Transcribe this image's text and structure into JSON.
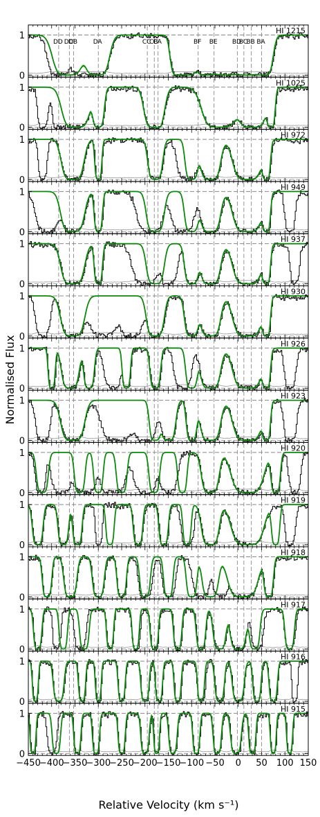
{
  "chart_data": {
    "type": "line",
    "ylabel": "Normalised Flux",
    "xlabel": "Relative Velocity (km s⁻¹)",
    "xlim": [
      -450,
      150
    ],
    "ylim": [
      -0.05,
      1.25
    ],
    "xticks": [
      -450,
      -400,
      -350,
      -300,
      -250,
      -200,
      -150,
      -100,
      -50,
      0,
      50,
      100,
      150
    ],
    "xtick_labels": [
      "−450",
      "−400",
      "−350",
      "−300",
      "−250",
      "−200",
      "−150",
      "−100",
      "−50",
      "0",
      "50",
      "100",
      "150"
    ],
    "yticks": [
      0,
      1
    ],
    "grid": false,
    "colors": {
      "data": "#000000",
      "model": "#0a8a0a",
      "model_band": "#7ccc7c",
      "error": "#999999",
      "guide": "#888888"
    },
    "components": [
      {
        "name": "DD",
        "v": -385
      },
      {
        "name": "DC",
        "v": -362
      },
      {
        "name": "DB",
        "v": -353
      },
      {
        "name": "DA",
        "v": -300
      },
      {
        "name": "CC",
        "v": -195
      },
      {
        "name": "CB",
        "v": -180
      },
      {
        "name": "CA",
        "v": -172
      },
      {
        "name": "BF",
        "v": -86
      },
      {
        "name": "BE",
        "v": -52
      },
      {
        "name": "BD",
        "v": -2
      },
      {
        "name": "BC",
        "v": 12
      },
      {
        "name": "BB",
        "v": 28
      },
      {
        "name": "BA",
        "v": 50
      }
    ],
    "panels": [
      {
        "label": "HI 1215",
        "show_components": true,
        "model_troughs": [
          [
            -365,
            52
          ],
          [
            -303,
            42
          ],
          [
            -130,
            25
          ],
          [
            -107,
            30
          ],
          [
            -70,
            35
          ],
          [
            -30,
            46
          ],
          [
            18,
            56
          ],
          [
            55,
            30
          ]
        ],
        "data_troughs": [
          [
            -385,
            40
          ],
          [
            -335,
            40
          ],
          [
            -303,
            42
          ],
          [
            -130,
            25
          ],
          [
            -107,
            30
          ],
          [
            -70,
            35
          ],
          [
            -30,
            46
          ],
          [
            18,
            56
          ],
          [
            55,
            30
          ]
        ]
      },
      {
        "label": "HI 1025",
        "show_components": false,
        "model_troughs": [
          [
            -348,
            48
          ],
          [
            -300,
            20
          ],
          [
            -180,
            35
          ],
          [
            -172,
            10
          ],
          [
            -40,
            60
          ],
          [
            30,
            50
          ],
          [
            70,
            14
          ]
        ],
        "data_troughs": [
          [
            -420,
            18
          ],
          [
            -385,
            25
          ],
          [
            -348,
            48
          ],
          [
            -300,
            20
          ],
          [
            -180,
            35
          ],
          [
            -172,
            10
          ],
          [
            -40,
            60
          ],
          [
            30,
            50
          ],
          [
            70,
            14
          ]
        ]
      },
      {
        "label": "HI 972",
        "show_components": false,
        "model_troughs": [
          [
            -355,
            38
          ],
          [
            -300,
            12
          ],
          [
            -178,
            25
          ],
          [
            -100,
            22
          ],
          [
            -60,
            35
          ],
          [
            20,
            50
          ],
          [
            60,
            14
          ]
        ],
        "data_troughs": [
          [
            -420,
            15
          ],
          [
            -355,
            38
          ],
          [
            -300,
            12
          ],
          [
            -178,
            25
          ],
          [
            -110,
            35
          ],
          [
            -60,
            35
          ],
          [
            20,
            50
          ],
          [
            60,
            14
          ]
        ]
      },
      {
        "label": "HI 949",
        "show_components": false,
        "model_troughs": [
          [
            -355,
            40
          ],
          [
            -300,
            14
          ],
          [
            -178,
            30
          ],
          [
            -100,
            24
          ],
          [
            -60,
            35
          ],
          [
            20,
            50
          ],
          [
            60,
            14
          ]
        ],
        "data_troughs": [
          [
            -410,
            40
          ],
          [
            -355,
            40
          ],
          [
            -300,
            14
          ],
          [
            -190,
            45
          ],
          [
            -120,
            40
          ],
          [
            -60,
            35
          ],
          [
            20,
            50
          ],
          [
            60,
            14
          ],
          [
            110,
            18
          ]
        ]
      },
      {
        "label": "HI 937",
        "show_components": false,
        "model_troughs": [
          [
            -355,
            40
          ],
          [
            -300,
            14
          ],
          [
            -178,
            30
          ],
          [
            -100,
            24
          ],
          [
            -60,
            35
          ],
          [
            20,
            50
          ],
          [
            60,
            14
          ]
        ],
        "data_troughs": [
          [
            -355,
            40
          ],
          [
            -300,
            14
          ],
          [
            -200,
            45
          ],
          [
            -150,
            30
          ],
          [
            -100,
            24
          ],
          [
            -60,
            35
          ],
          [
            20,
            50
          ],
          [
            60,
            14
          ],
          [
            120,
            16
          ]
        ]
      },
      {
        "label": "HI 930",
        "show_components": false,
        "model_troughs": [
          [
            -355,
            40
          ],
          [
            -178,
            30
          ],
          [
            -100,
            24
          ],
          [
            -60,
            35
          ],
          [
            20,
            50
          ],
          [
            60,
            14
          ]
        ],
        "data_troughs": [
          [
            -420,
            25
          ],
          [
            -355,
            40
          ],
          [
            -290,
            50
          ],
          [
            -230,
            40
          ],
          [
            -178,
            30
          ],
          [
            -100,
            24
          ],
          [
            -60,
            35
          ],
          [
            20,
            50
          ],
          [
            60,
            14
          ]
        ]
      },
      {
        "label": "HI 926",
        "show_components": false,
        "model_troughs": [
          [
            -400,
            12
          ],
          [
            -360,
            30
          ],
          [
            -320,
            18
          ],
          [
            -240,
            14
          ],
          [
            -178,
            18
          ],
          [
            -100,
            20
          ],
          [
            -60,
            35
          ],
          [
            20,
            50
          ],
          [
            60,
            14
          ]
        ],
        "data_troughs": [
          [
            -400,
            12
          ],
          [
            -360,
            30
          ],
          [
            -320,
            18
          ],
          [
            -270,
            30
          ],
          [
            -240,
            14
          ],
          [
            -178,
            18
          ],
          [
            -120,
            30
          ],
          [
            -60,
            35
          ],
          [
            20,
            50
          ],
          [
            60,
            14
          ],
          [
            110,
            20
          ]
        ]
      },
      {
        "label": "HI 923",
        "show_components": false,
        "model_troughs": [
          [
            -355,
            40
          ],
          [
            -178,
            20
          ],
          [
            -150,
            25
          ],
          [
            -100,
            18
          ],
          [
            -60,
            35
          ],
          [
            20,
            50
          ],
          [
            60,
            14
          ]
        ],
        "data_troughs": [
          [
            -420,
            25
          ],
          [
            -355,
            40
          ],
          [
            -260,
            55
          ],
          [
            -200,
            40
          ],
          [
            -150,
            25
          ],
          [
            -100,
            18
          ],
          [
            -60,
            35
          ],
          [
            20,
            50
          ],
          [
            60,
            14
          ],
          [
            110,
            22
          ]
        ]
      },
      {
        "label": "HI 920",
        "show_components": false,
        "model_troughs": [
          [
            -420,
            20
          ],
          [
            -340,
            18
          ],
          [
            -300,
            16
          ],
          [
            -250,
            18
          ],
          [
            -180,
            18
          ],
          [
            -120,
            16
          ],
          [
            -60,
            30
          ],
          [
            20,
            55
          ],
          [
            80,
            16
          ]
        ],
        "data_troughs": [
          [
            -425,
            18
          ],
          [
            -380,
            35
          ],
          [
            -330,
            40
          ],
          [
            -270,
            45
          ],
          [
            -200,
            40
          ],
          [
            -150,
            30
          ],
          [
            -60,
            30
          ],
          [
            20,
            55
          ],
          [
            80,
            16
          ],
          [
            120,
            20
          ]
        ]
      },
      {
        "label": "HI 919",
        "show_components": false,
        "model_troughs": [
          [
            -430,
            18
          ],
          [
            -375,
            18
          ],
          [
            -345,
            16
          ],
          [
            -275,
            14
          ],
          [
            -215,
            16
          ],
          [
            -160,
            16
          ],
          [
            -110,
            14
          ],
          [
            -60,
            30
          ],
          [
            20,
            55
          ],
          [
            80,
            14
          ]
        ],
        "data_troughs": [
          [
            -430,
            18
          ],
          [
            -375,
            18
          ],
          [
            -345,
            16
          ],
          [
            -300,
            12
          ],
          [
            -215,
            16
          ],
          [
            -160,
            16
          ],
          [
            -110,
            22
          ],
          [
            -60,
            30
          ],
          [
            20,
            55
          ],
          [
            110,
            18
          ]
        ]
      },
      {
        "label": "HI 918",
        "show_components": false,
        "model_troughs": [
          [
            -410,
            16
          ],
          [
            -360,
            22
          ],
          [
            -300,
            20
          ],
          [
            -250,
            16
          ],
          [
            -200,
            18
          ],
          [
            -150,
            16
          ],
          [
            -100,
            18
          ],
          [
            -60,
            28
          ],
          [
            10,
            52
          ],
          [
            65,
            16
          ]
        ],
        "data_troughs": [
          [
            -410,
            16
          ],
          [
            -360,
            22
          ],
          [
            -300,
            20
          ],
          [
            -250,
            16
          ],
          [
            -200,
            24
          ],
          [
            -150,
            22
          ],
          [
            -80,
            30
          ],
          [
            -40,
            25
          ],
          [
            10,
            52
          ],
          [
            65,
            16
          ]
        ]
      },
      {
        "label": "HI 917",
        "show_components": false,
        "model_troughs": [
          [
            -430,
            14
          ],
          [
            -375,
            14
          ],
          [
            -330,
            16
          ],
          [
            -275,
            12
          ],
          [
            -220,
            12
          ],
          [
            -180,
            14
          ],
          [
            -130,
            14
          ],
          [
            -80,
            16
          ],
          [
            -40,
            22
          ],
          [
            0,
            28
          ],
          [
            35,
            18
          ],
          [
            110,
            16
          ]
        ],
        "data_troughs": [
          [
            -430,
            14
          ],
          [
            -390,
            14
          ],
          [
            -340,
            20
          ],
          [
            -275,
            12
          ],
          [
            -220,
            14
          ],
          [
            -180,
            14
          ],
          [
            -130,
            14
          ],
          [
            -80,
            16
          ],
          [
            -40,
            22
          ],
          [
            0,
            28
          ],
          [
            40,
            20
          ],
          [
            110,
            18
          ]
        ]
      },
      {
        "label": "HI 916",
        "show_components": false,
        "model_troughs": [
          [
            -435,
            10
          ],
          [
            -385,
            18
          ],
          [
            -335,
            12
          ],
          [
            -300,
            10
          ],
          [
            -250,
            12
          ],
          [
            -200,
            14
          ],
          [
            -170,
            12
          ],
          [
            -130,
            12
          ],
          [
            -80,
            12
          ],
          [
            -40,
            16
          ],
          [
            0,
            20
          ],
          [
            40,
            14
          ],
          [
            75,
            14
          ]
        ],
        "data_troughs": [
          [
            -435,
            10
          ],
          [
            -385,
            18
          ],
          [
            -335,
            12
          ],
          [
            -300,
            10
          ],
          [
            -250,
            12
          ],
          [
            -200,
            14
          ],
          [
            -170,
            12
          ],
          [
            -130,
            12
          ],
          [
            -80,
            14
          ],
          [
            -40,
            16
          ],
          [
            0,
            20
          ],
          [
            40,
            14
          ],
          [
            75,
            14
          ],
          [
            120,
            10
          ]
        ]
      },
      {
        "label": "HI 915",
        "show_components": false,
        "model_troughs": [
          [
            -440,
            10
          ],
          [
            -390,
            14
          ],
          [
            -345,
            12
          ],
          [
            -305,
            12
          ],
          [
            -250,
            12
          ],
          [
            -200,
            14
          ],
          [
            -175,
            10
          ],
          [
            -140,
            14
          ],
          [
            -90,
            12
          ],
          [
            -45,
            14
          ],
          [
            -5,
            18
          ],
          [
            30,
            12
          ],
          [
            75,
            10
          ],
          [
            110,
            10
          ]
        ],
        "data_troughs": [
          [
            -440,
            10
          ],
          [
            -400,
            16
          ],
          [
            -345,
            12
          ],
          [
            -305,
            12
          ],
          [
            -250,
            12
          ],
          [
            -200,
            14
          ],
          [
            -175,
            10
          ],
          [
            -140,
            14
          ],
          [
            -90,
            12
          ],
          [
            -45,
            14
          ],
          [
            -5,
            18
          ],
          [
            30,
            12
          ],
          [
            75,
            10
          ],
          [
            110,
            10
          ]
        ]
      }
    ]
  }
}
